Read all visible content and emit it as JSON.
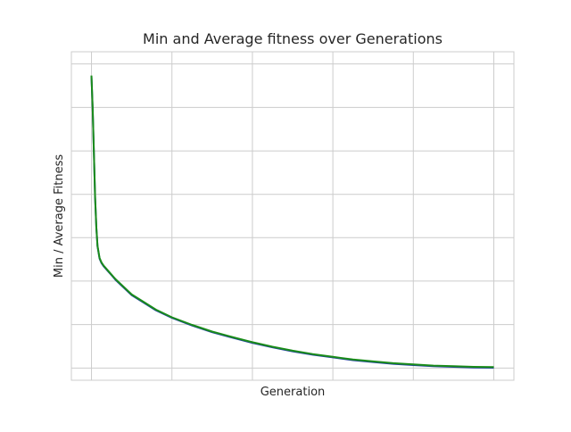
{
  "chart_data": {
    "type": "line",
    "title": "Min and Average fitness over Generations",
    "xlabel": "Generation",
    "ylabel": "Min / Average Fitness",
    "x_tick_labels_visible": false,
    "y_tick_labels_visible": false,
    "grid": true,
    "xlim": [
      -0.05,
      1.05
    ],
    "ylim": [
      -0.04,
      1.04
    ],
    "x_gridlines": [
      0,
      0.2,
      0.4,
      0.6,
      0.8,
      1.0
    ],
    "y_gridlines": [
      0,
      0.143,
      0.286,
      0.429,
      0.571,
      0.714,
      0.857,
      1.0
    ],
    "x": [
      0,
      0.003,
      0.006,
      0.009,
      0.012,
      0.015,
      0.02,
      0.025,
      0.03,
      0.04,
      0.05,
      0.06,
      0.08,
      0.1,
      0.13,
      0.16,
      0.2,
      0.25,
      0.3,
      0.35,
      0.4,
      0.45,
      0.5,
      0.55,
      0.6,
      0.65,
      0.7,
      0.75,
      0.8,
      0.85,
      0.9,
      0.95,
      1.0
    ],
    "series": [
      {
        "color": "#1f3f9f",
        "values": [
          0.96,
          0.85,
          0.7,
          0.56,
          0.46,
          0.4,
          0.36,
          0.345,
          0.335,
          0.32,
          0.305,
          0.29,
          0.265,
          0.24,
          0.215,
          0.19,
          0.165,
          0.14,
          0.118,
          0.1,
          0.083,
          0.068,
          0.055,
          0.044,
          0.035,
          0.026,
          0.02,
          0.014,
          0.01,
          0.006,
          0.004,
          0.002,
          0.001
        ]
      },
      {
        "color": "#1a8c1a",
        "values": [
          0.962,
          0.852,
          0.702,
          0.562,
          0.462,
          0.402,
          0.362,
          0.347,
          0.337,
          0.322,
          0.307,
          0.292,
          0.267,
          0.242,
          0.217,
          0.192,
          0.167,
          0.142,
          0.12,
          0.102,
          0.085,
          0.07,
          0.057,
          0.046,
          0.037,
          0.028,
          0.022,
          0.016,
          0.012,
          0.008,
          0.006,
          0.004,
          0.003
        ]
      }
    ]
  }
}
